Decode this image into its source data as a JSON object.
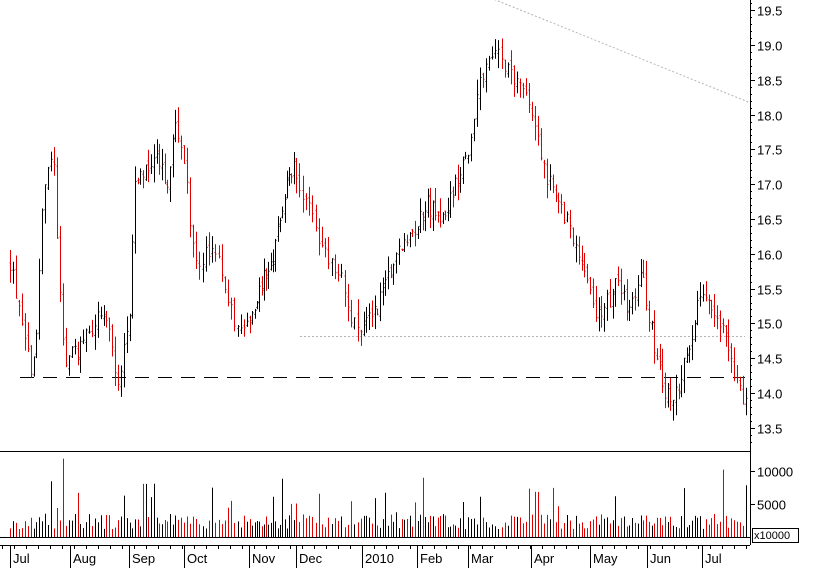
{
  "chart_data": {
    "type": "candlestick",
    "title": "",
    "xlabel": "",
    "ylabel": "",
    "colors": {
      "up": "#000000",
      "down": "#e00000",
      "guide_dotted": "#b4b4b4",
      "guide_dashed": "#000000"
    },
    "months": [
      "Jul",
      "Aug",
      "Sep",
      "Oct",
      "Nov",
      "Dec",
      "2010",
      "Feb",
      "Mar",
      "Apr",
      "May",
      "Jun",
      "Jul"
    ],
    "price_axis": {
      "ylim": [
        13.25,
        19.78
      ],
      "ticks": [
        "13.5",
        "14.0",
        "14.5",
        "15.0",
        "15.5",
        "16.0",
        "16.5",
        "17.0",
        "17.5",
        "18.0",
        "18.5",
        "19.0",
        "19.5"
      ]
    },
    "volume_axis": {
      "ylim": [
        0,
        12500
      ],
      "ticks": [
        "5000",
        "10000"
      ],
      "unit_label": "x10000"
    },
    "series": [
      {
        "name": "price",
        "anchors_month_index": [
          0,
          0.18,
          0.35,
          0.42,
          0.55,
          0.72,
          0.82,
          0.9,
          0.97,
          1.02,
          1.1,
          1.3,
          1.5,
          1.7,
          1.8,
          1.9,
          1.95,
          2.02,
          2.1,
          2.3,
          2.5,
          2.7,
          2.85,
          3.0,
          3.15,
          3.3,
          3.45,
          3.6,
          3.8,
          4.0,
          4.3,
          4.55,
          4.75,
          4.95,
          5.2,
          5.45,
          5.7,
          5.9,
          6.1,
          6.3,
          6.55,
          6.8,
          7.0,
          7.2,
          7.45,
          7.7,
          7.95,
          8.2,
          8.45,
          8.7,
          8.95,
          9.05,
          9.15,
          9.22,
          9.3,
          9.45,
          9.6,
          9.8,
          10.0,
          10.1,
          10.3,
          10.5,
          10.7,
          10.9,
          11.1,
          11.3,
          11.45,
          11.6,
          11.7,
          11.85,
          11.95,
          12.1,
          12.2,
          12.35,
          12.45,
          12.55,
          12.65,
          12.75
        ],
        "anchors_value": [
          15.9,
          15.1,
          14.3,
          14.6,
          16.8,
          17.4,
          15.8,
          14.5,
          14.4,
          14.8,
          14.6,
          14.9,
          15.1,
          14.8,
          14.1,
          14.6,
          14.9,
          15.3,
          17.0,
          17.2,
          17.3,
          17.0,
          17.9,
          17.3,
          16.0,
          15.9,
          16.2,
          15.6,
          15.0,
          14.9,
          15.6,
          16.1,
          16.9,
          17.2,
          16.6,
          16.0,
          15.6,
          14.9,
          15.0,
          15.3,
          15.8,
          16.2,
          16.4,
          16.7,
          16.5,
          16.9,
          17.3,
          18.5,
          19.0,
          18.5,
          18.2,
          17.8,
          17.5,
          17.2,
          17.0,
          16.8,
          16.5,
          15.9,
          15.6,
          15.0,
          15.3,
          15.6,
          15.1,
          15.8,
          14.8,
          14.0,
          13.85,
          14.1,
          14.5,
          15.0,
          15.3,
          15.4,
          15.2,
          15.0,
          14.7,
          14.3,
          14.0,
          13.9
        ],
        "volume_baseline": 2600
      }
    ],
    "annotations": [
      {
        "kind": "dashed-horizontal-line",
        "value": 14.23
      },
      {
        "kind": "dotted-horizontal-line",
        "value": 14.82
      },
      {
        "kind": "dotted-trend-line",
        "from": {
          "month_index": 7.35,
          "value": 20.0
        },
        "to": {
          "month_index": 12.8,
          "value": 18.18
        }
      }
    ]
  }
}
